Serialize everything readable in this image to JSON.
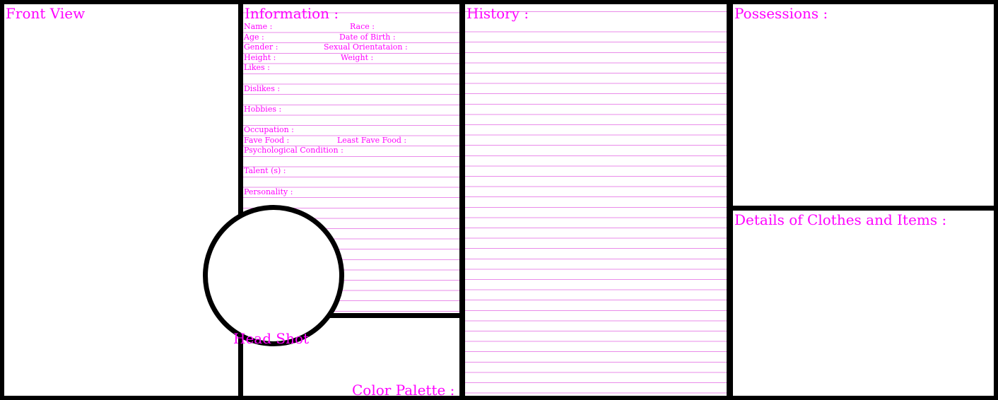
{
  "panels": {
    "front_view": "Front View",
    "information": "Information :",
    "history": "History :",
    "possessions": "Possessions :",
    "details": "Details of Clothes and Items :",
    "head_shot": "Head Shot",
    "color_palette": "Color Palette :"
  },
  "fields": {
    "name": "Name :",
    "race": "Race :",
    "age": "Age :",
    "date_of_birth": "Date of Birth :",
    "gender": "Gender :",
    "sexual_orientation": "Sexual Orientataion :",
    "height": "Height :",
    "weight": "Weight :",
    "likes": "Likes :",
    "dislikes": "Dislikes :",
    "hobbies": "Hobbies :",
    "occupation": "Occupation :",
    "fave_food": "Fave Food :",
    "least_fave_food": "Least Fave Food :",
    "psychological_condition": "Psychological Condition :",
    "talents": "Talent (s) :",
    "personality": "Personality :"
  },
  "colors": {
    "border": "#000000",
    "text": "#ff00ff",
    "rule_line": "#e98be9",
    "panel": "#ffffff"
  }
}
